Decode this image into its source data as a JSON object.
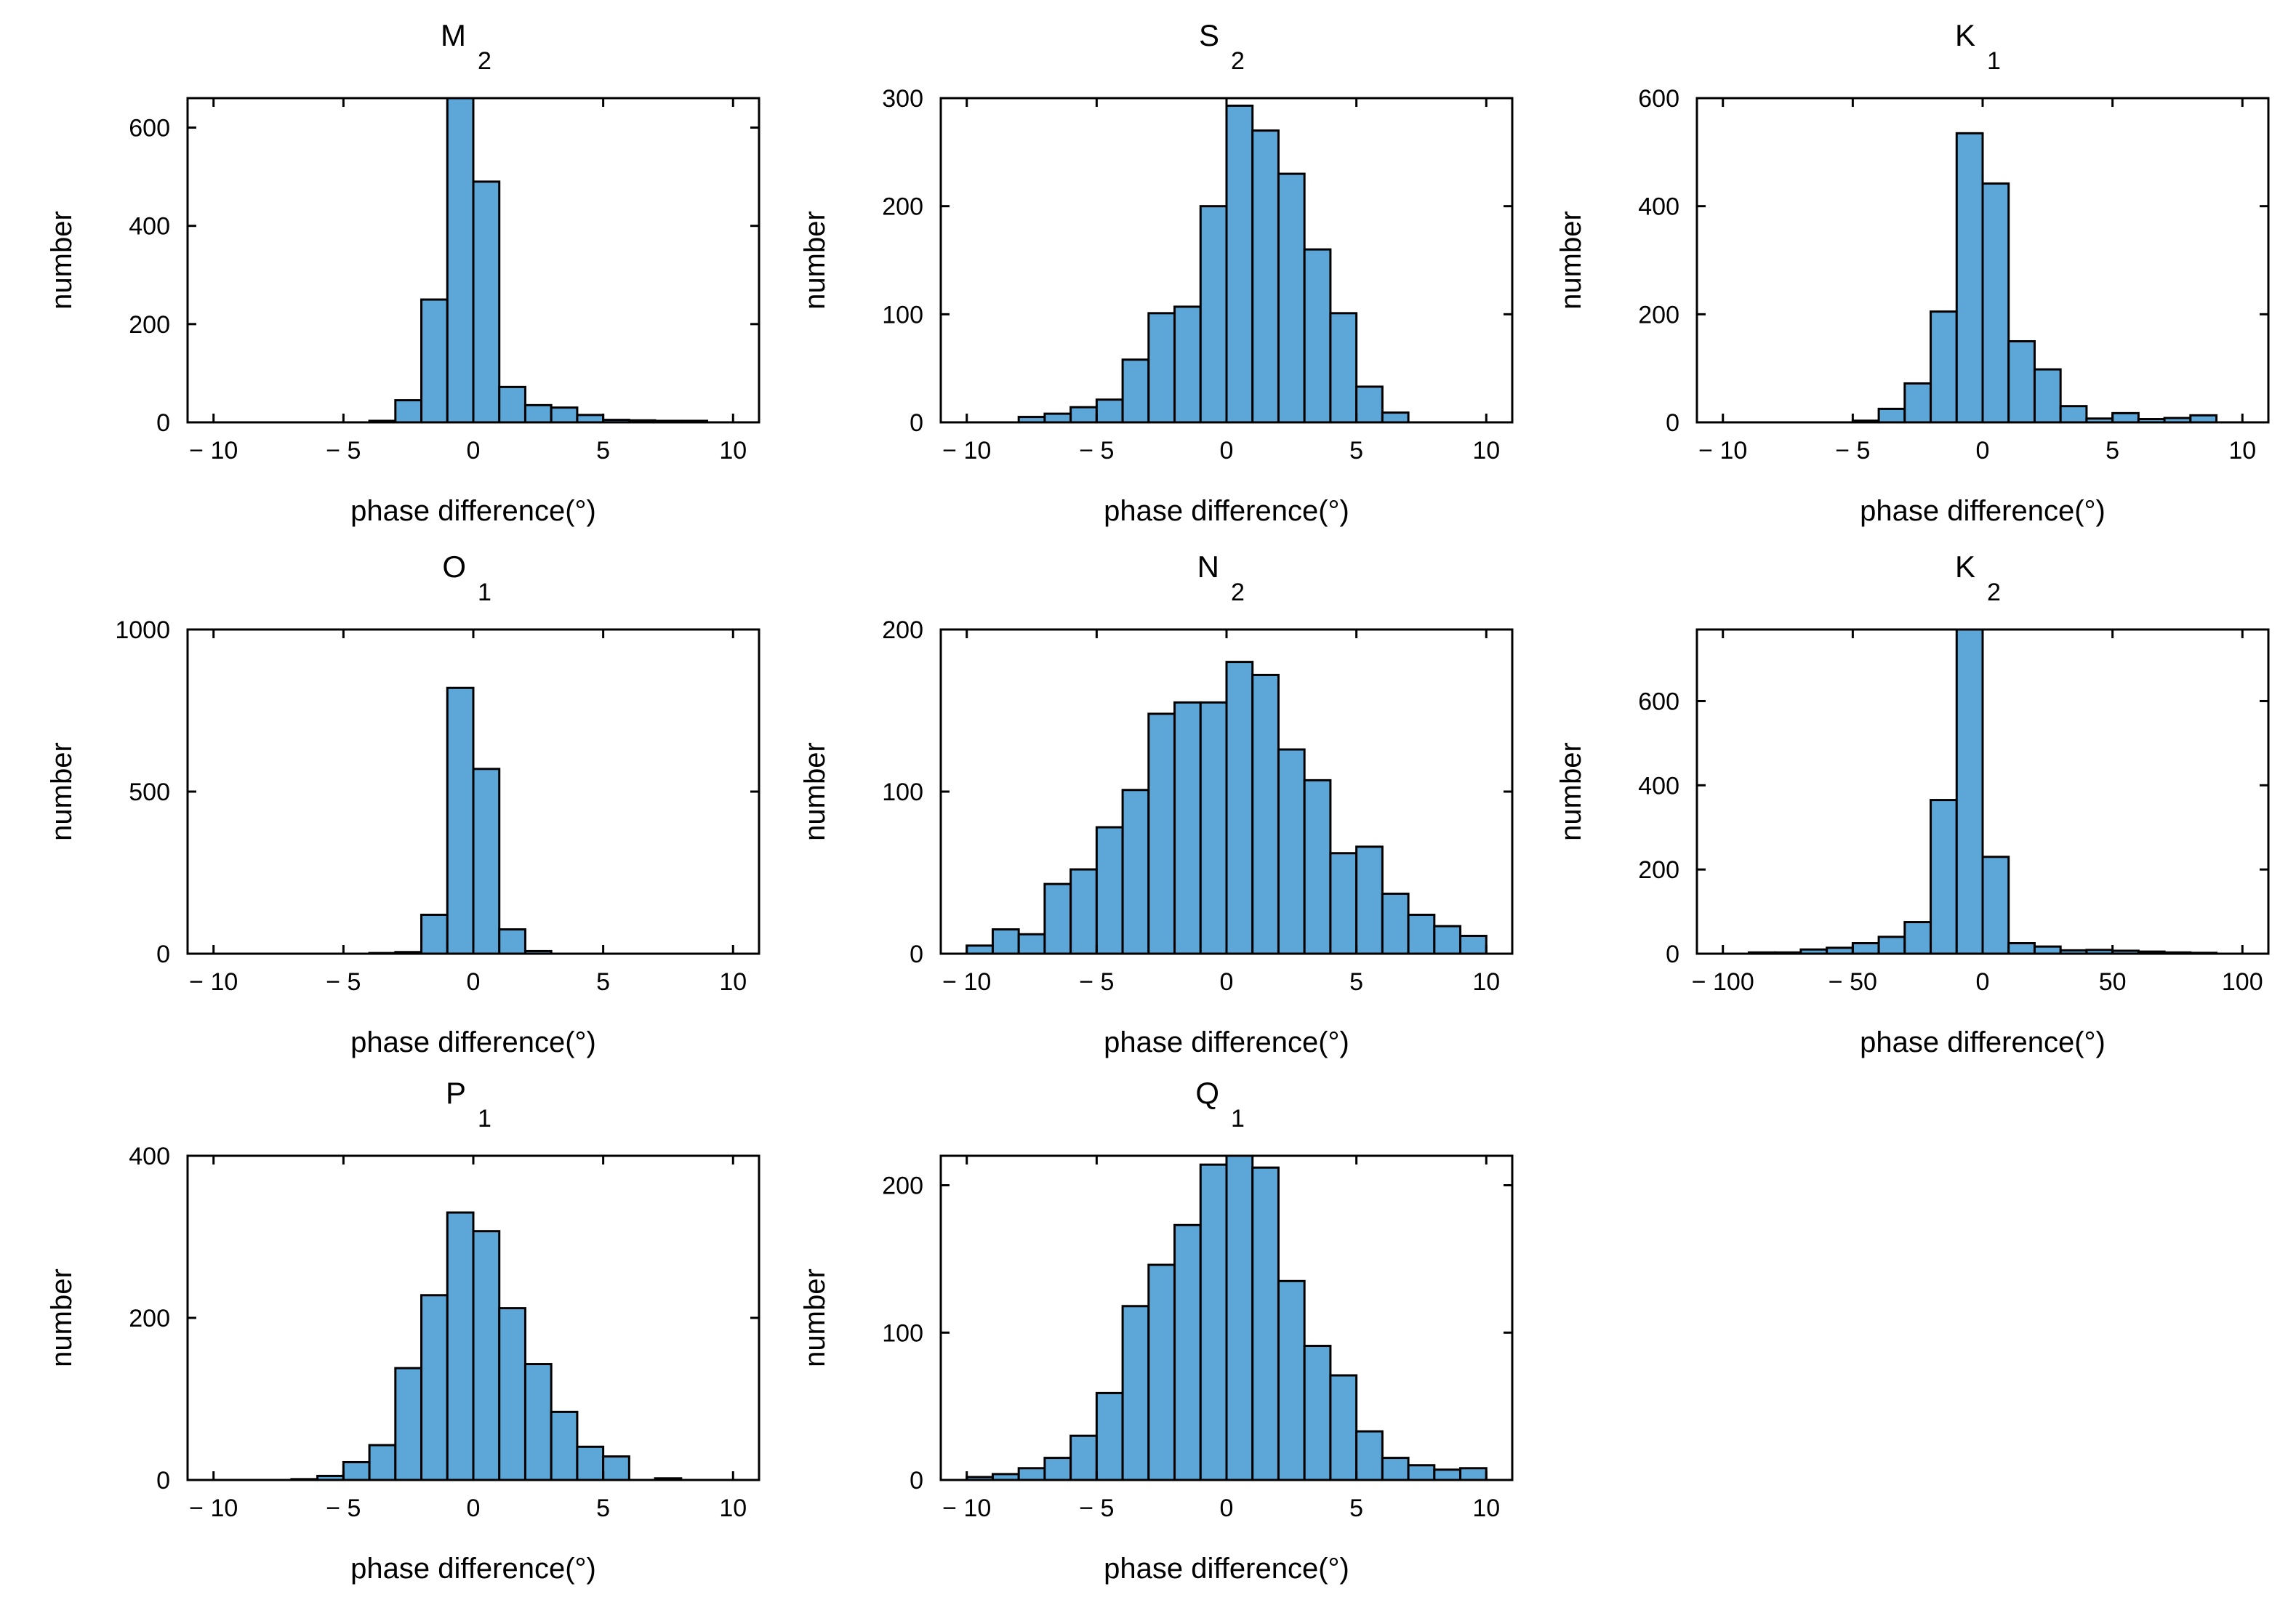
{
  "figure": {
    "bar_color": "#5ca7d8",
    "edge_color": "#000000",
    "background": "#ffffff"
  },
  "chart_data": [
    {
      "type": "bar",
      "title": "M",
      "subscript": "2",
      "xlabel": "phase difference(°)",
      "ylabel": "number",
      "xlim": [
        -11,
        11
      ],
      "ylim": [
        0,
        660
      ],
      "xticks": [
        -10,
        -5,
        0,
        5,
        10
      ],
      "xtick_labels": [
        "− 10",
        "− 5",
        "0",
        "5",
        "10"
      ],
      "yticks": [
        0,
        200,
        400,
        600
      ],
      "ytick_labels": [
        "0",
        "200",
        "400",
        "600"
      ],
      "bin_edges": [
        -10,
        -9,
        -8,
        -7,
        -6,
        -5,
        -4,
        -3,
        -2,
        -1,
        0,
        1,
        2,
        3,
        4,
        5,
        6,
        7,
        8,
        9
      ],
      "values": [
        0,
        0,
        0,
        0,
        0,
        0,
        3,
        45,
        250,
        660,
        490,
        72,
        35,
        30,
        15,
        5,
        4,
        3,
        3
      ]
    },
    {
      "type": "bar",
      "title": "S",
      "subscript": "2",
      "xlabel": "phase difference(°)",
      "ylabel": "number",
      "xlim": [
        -11,
        11
      ],
      "ylim": [
        0,
        300
      ],
      "xticks": [
        -10,
        -5,
        0,
        5,
        10
      ],
      "xtick_labels": [
        "− 10",
        "− 5",
        "0",
        "5",
        "10"
      ],
      "yticks": [
        0,
        100,
        200,
        300
      ],
      "ytick_labels": [
        "0",
        "100",
        "200",
        "300"
      ],
      "bin_edges": [
        -10,
        -9,
        -8,
        -7,
        -6,
        -5,
        -4,
        -3,
        -2,
        -1,
        0,
        1,
        2,
        3,
        4,
        5,
        6,
        7
      ],
      "values": [
        0,
        0,
        5,
        8,
        14,
        21,
        58,
        101,
        107,
        200,
        293,
        270,
        230,
        160,
        101,
        33,
        9
      ]
    },
    {
      "type": "bar",
      "title": "K",
      "subscript": "1",
      "xlabel": "phase difference(°)",
      "ylabel": "number",
      "xlim": [
        -11,
        11
      ],
      "ylim": [
        0,
        600
      ],
      "xticks": [
        -10,
        -5,
        0,
        5,
        10
      ],
      "xtick_labels": [
        "− 10",
        "− 5",
        "0",
        "5",
        "10"
      ],
      "yticks": [
        0,
        200,
        400,
        600
      ],
      "ytick_labels": [
        "0",
        "200",
        "400",
        "600"
      ],
      "bin_edges": [
        -10,
        -9,
        -8,
        -7,
        -6,
        -5,
        -4,
        -3,
        -2,
        -1,
        0,
        1,
        2,
        3,
        4,
        5,
        6,
        7,
        8,
        9
      ],
      "values": [
        0,
        0,
        0,
        0,
        0,
        3,
        25,
        72,
        205,
        535,
        442,
        150,
        98,
        30,
        7,
        17,
        6,
        8,
        13
      ]
    },
    {
      "type": "bar",
      "title": "O",
      "subscript": "1",
      "xlabel": "phase difference(°)",
      "ylabel": "number",
      "xlim": [
        -11,
        11
      ],
      "ylim": [
        0,
        1000
      ],
      "xticks": [
        -10,
        -5,
        0,
        5,
        10
      ],
      "xtick_labels": [
        "− 10",
        "− 5",
        "0",
        "5",
        "10"
      ],
      "yticks": [
        0,
        500,
        1000
      ],
      "ytick_labels": [
        "0",
        "500",
        "1000"
      ],
      "bin_edges": [
        -10,
        -9,
        -8,
        -7,
        -6,
        -5,
        -4,
        -3,
        -2,
        -1,
        0,
        1,
        2,
        3
      ],
      "values": [
        0,
        0,
        0,
        0,
        0,
        0,
        2,
        5,
        120,
        820,
        570,
        75,
        8
      ]
    },
    {
      "type": "bar",
      "title": "N",
      "subscript": "2",
      "xlabel": "phase difference(°)",
      "ylabel": "number",
      "xlim": [
        -11,
        11
      ],
      "ylim": [
        0,
        200
      ],
      "xticks": [
        -10,
        -5,
        0,
        5,
        10
      ],
      "xtick_labels": [
        "− 10",
        "− 5",
        "0",
        "5",
        "10"
      ],
      "yticks": [
        0,
        100,
        200
      ],
      "ytick_labels": [
        "0",
        "100",
        "200"
      ],
      "bin_edges": [
        -10,
        -9,
        -8,
        -7,
        -6,
        -5,
        -4,
        -3,
        -2,
        -1,
        0,
        1,
        2,
        3,
        4,
        5,
        6,
        7,
        8,
        9,
        10
      ],
      "values": [
        5,
        15,
        12,
        43,
        52,
        78,
        101,
        148,
        155,
        155,
        180,
        172,
        126,
        107,
        62,
        66,
        37,
        24,
        17,
        11
      ]
    },
    {
      "type": "bar",
      "title": "K",
      "subscript": "2",
      "xlabel": "phase difference(°)",
      "ylabel": "number",
      "xlim": [
        -110,
        110
      ],
      "ylim": [
        0,
        770
      ],
      "xticks": [
        -100,
        -50,
        0,
        50,
        100
      ],
      "xtick_labels": [
        "− 100",
        "− 50",
        "0",
        "50",
        "100"
      ],
      "yticks": [
        0,
        200,
        400,
        600
      ],
      "ytick_labels": [
        "0",
        "200",
        "400",
        "600"
      ],
      "bin_edges": [
        -100,
        -90,
        -80,
        -70,
        -60,
        -50,
        -40,
        -30,
        -20,
        -10,
        0,
        10,
        20,
        30,
        40,
        50,
        60,
        70,
        80,
        90
      ],
      "values": [
        0,
        3,
        3,
        10,
        14,
        25,
        40,
        75,
        365,
        770,
        230,
        25,
        17,
        8,
        9,
        7,
        5,
        3,
        2
      ]
    },
    {
      "type": "bar",
      "title": "P",
      "subscript": "1",
      "xlabel": "phase difference(°)",
      "ylabel": "number",
      "xlim": [
        -11,
        11
      ],
      "ylim": [
        0,
        400
      ],
      "xticks": [
        -10,
        -5,
        0,
        5,
        10
      ],
      "xtick_labels": [
        "− 10",
        "− 5",
        "0",
        "5",
        "10"
      ],
      "yticks": [
        0,
        200,
        400
      ],
      "ytick_labels": [
        "0",
        "200",
        "400"
      ],
      "bin_edges": [
        -10,
        -9,
        -8,
        -7,
        -6,
        -5,
        -4,
        -3,
        -2,
        -1,
        0,
        1,
        2,
        3,
        4,
        5,
        6,
        7,
        8,
        9
      ],
      "values": [
        0,
        0,
        0,
        1,
        5,
        22,
        43,
        138,
        228,
        330,
        307,
        212,
        143,
        84,
        41,
        29,
        0,
        2,
        0
      ]
    },
    {
      "type": "bar",
      "title": "Q",
      "subscript": "1",
      "xlabel": "phase difference(°)",
      "ylabel": "number",
      "xlim": [
        -11,
        11
      ],
      "ylim": [
        0,
        220
      ],
      "xticks": [
        -10,
        -5,
        0,
        5,
        10
      ],
      "xtick_labels": [
        "− 10",
        "− 5",
        "0",
        "5",
        "10"
      ],
      "yticks": [
        0,
        100,
        200
      ],
      "ytick_labels": [
        "0",
        "100",
        "200"
      ],
      "bin_edges": [
        -10,
        -9,
        -8,
        -7,
        -6,
        -5,
        -4,
        -3,
        -2,
        -1,
        0,
        1,
        2,
        3,
        4,
        5,
        6,
        7,
        8,
        9,
        10
      ],
      "values": [
        2,
        4,
        8,
        15,
        30,
        59,
        118,
        146,
        173,
        214,
        222,
        212,
        135,
        91,
        71,
        33,
        15,
        10,
        7,
        8
      ]
    }
  ]
}
